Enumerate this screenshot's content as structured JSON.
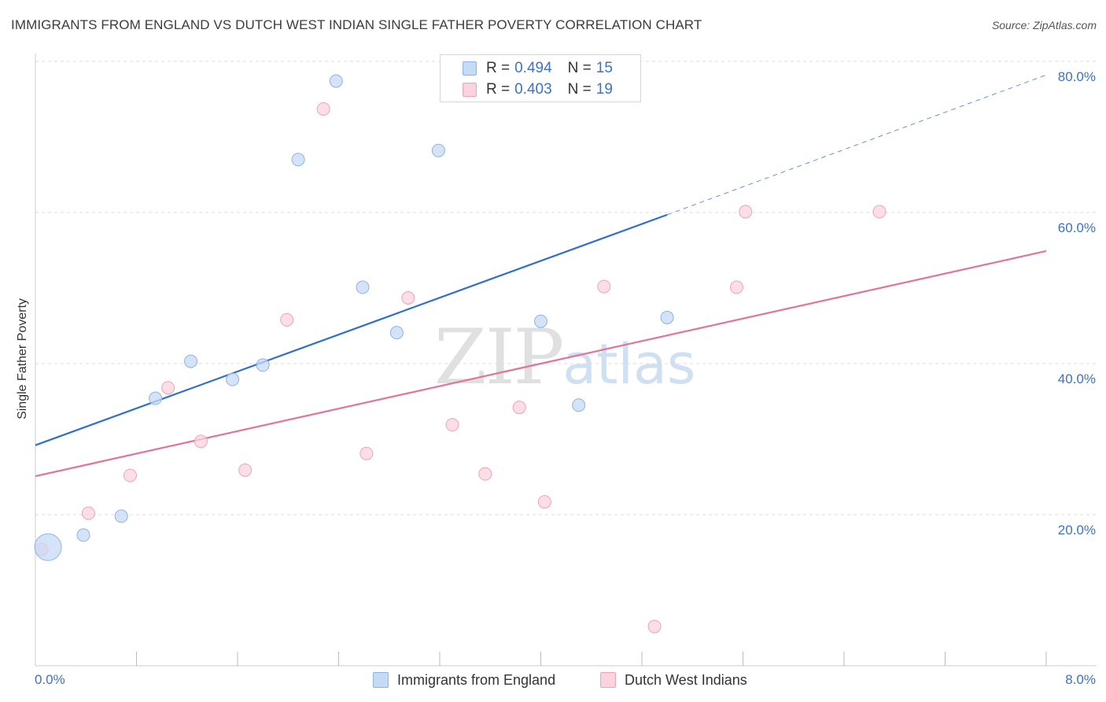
{
  "title": "IMMIGRANTS FROM ENGLAND VS DUTCH WEST INDIAN SINGLE FATHER POVERTY CORRELATION CHART",
  "source": "Source: ZipAtlas.com",
  "watermark": {
    "zip": "ZIP",
    "atlas": "atlas"
  },
  "legend": {
    "rows": [
      {
        "r_label": "R =",
        "r_value": "0.494",
        "n_label": "N =",
        "n_value": "15",
        "color": "#a9c8ee"
      },
      {
        "r_label": "R =",
        "r_value": "0.403",
        "n_label": "N =",
        "n_value": "19",
        "color": "#f4b6c8"
      }
    ]
  },
  "bottom_legend": {
    "england": "Immigrants from England",
    "dutch": "Dutch West Indians"
  },
  "colors": {
    "england_fill": "#c5daf5",
    "england_stroke": "#8db3e2",
    "england_line": "#2f6fce",
    "dutch_fill": "#fad3de",
    "dutch_stroke": "#eea3b8",
    "dutch_line": "#e0749a",
    "tick_text": "#3d72c4",
    "grid": "#dddddd"
  },
  "chart_data": {
    "type": "scatter",
    "title": "IMMIGRANTS FROM ENGLAND VS DUTCH WEST INDIAN SINGLE FATHER POVERTY CORRELATION CHART",
    "xlabel": "",
    "ylabel": "Single Father Poverty",
    "xlim": [
      0,
      8
    ],
    "ylim": [
      0,
      80
    ],
    "x_tick_labels": [
      "0.0%",
      "8.0%"
    ],
    "y_ticks": [
      20,
      40,
      60,
      80
    ],
    "y_tick_labels": [
      "20.0%",
      "40.0%",
      "60.0%",
      "80.0%"
    ],
    "grid": "horizontal dashed",
    "legend_position": "top-center",
    "series": [
      {
        "name": "Immigrants from England",
        "points": [
          {
            "x": 0.1,
            "y": 15.7,
            "size": "large"
          },
          {
            "x": 0.38,
            "y": 17.3
          },
          {
            "x": 0.68,
            "y": 19.8
          },
          {
            "x": 0.95,
            "y": 35.4
          },
          {
            "x": 1.23,
            "y": 40.3
          },
          {
            "x": 1.56,
            "y": 37.9
          },
          {
            "x": 1.8,
            "y": 39.8
          },
          {
            "x": 2.08,
            "y": 67.0
          },
          {
            "x": 2.38,
            "y": 77.4
          },
          {
            "x": 2.59,
            "y": 50.1
          },
          {
            "x": 2.86,
            "y": 44.1
          },
          {
            "x": 3.19,
            "y": 68.2
          },
          {
            "x": 4.0,
            "y": 45.6
          },
          {
            "x": 4.3,
            "y": 34.5
          },
          {
            "x": 5.0,
            "y": 46.1
          }
        ],
        "trend": {
          "x0": 0,
          "y0": 29.2,
          "x1": 5.0,
          "y1": 59.7,
          "extend_to_x": 8.0,
          "extend_y": 78.2
        }
      },
      {
        "name": "Dutch West Indians",
        "points": [
          {
            "x": 0.05,
            "y": 15.4
          },
          {
            "x": 0.42,
            "y": 20.2
          },
          {
            "x": 0.75,
            "y": 25.2
          },
          {
            "x": 1.05,
            "y": 36.8
          },
          {
            "x": 1.31,
            "y": 29.7
          },
          {
            "x": 1.66,
            "y": 25.9
          },
          {
            "x": 1.99,
            "y": 45.8
          },
          {
            "x": 2.28,
            "y": 73.7
          },
          {
            "x": 2.62,
            "y": 28.1
          },
          {
            "x": 2.95,
            "y": 48.7
          },
          {
            "x": 3.3,
            "y": 31.9
          },
          {
            "x": 3.56,
            "y": 25.4
          },
          {
            "x": 3.83,
            "y": 34.2
          },
          {
            "x": 4.03,
            "y": 21.7
          },
          {
            "x": 4.5,
            "y": 50.2
          },
          {
            "x": 4.9,
            "y": 5.2
          },
          {
            "x": 5.55,
            "y": 50.1
          },
          {
            "x": 5.62,
            "y": 60.1
          },
          {
            "x": 6.68,
            "y": 60.1
          }
        ],
        "trend": {
          "x0": 0,
          "y0": 25.1,
          "x1": 8.0,
          "y1": 54.9
        }
      }
    ]
  }
}
